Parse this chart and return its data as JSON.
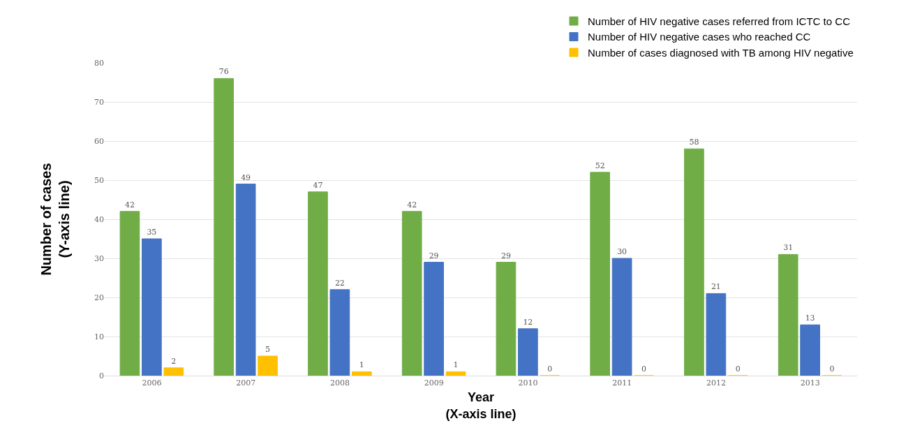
{
  "chart_data": {
    "type": "bar",
    "xlabel": "Year\n(X-axis line)",
    "ylabel": "Number of cases\n(Y-axis line)",
    "categories": [
      "2006",
      "2007",
      "2008",
      "2009",
      "2010",
      "2011",
      "2012",
      "2013"
    ],
    "series": [
      {
        "name": "Number of HIV negative cases referred from ICTC to CC",
        "color": "#70ad47",
        "values": [
          42,
          76,
          47,
          42,
          29,
          52,
          58,
          31
        ]
      },
      {
        "name": "Number of HIV negative cases who reached CC",
        "color": "#4472c4",
        "values": [
          35,
          49,
          22,
          29,
          12,
          30,
          21,
          13
        ]
      },
      {
        "name": "Number of cases diagnosed with TB among HIV negative",
        "color": "#ffc000",
        "values": [
          2,
          5,
          1,
          1,
          0,
          0,
          0,
          0
        ]
      }
    ],
    "ylim": [
      0,
      80
    ],
    "yticks": [
      0,
      10,
      20,
      30,
      40,
      50,
      60,
      70,
      80
    ],
    "grid": "y",
    "legend": "top right",
    "data_labels": true
  }
}
